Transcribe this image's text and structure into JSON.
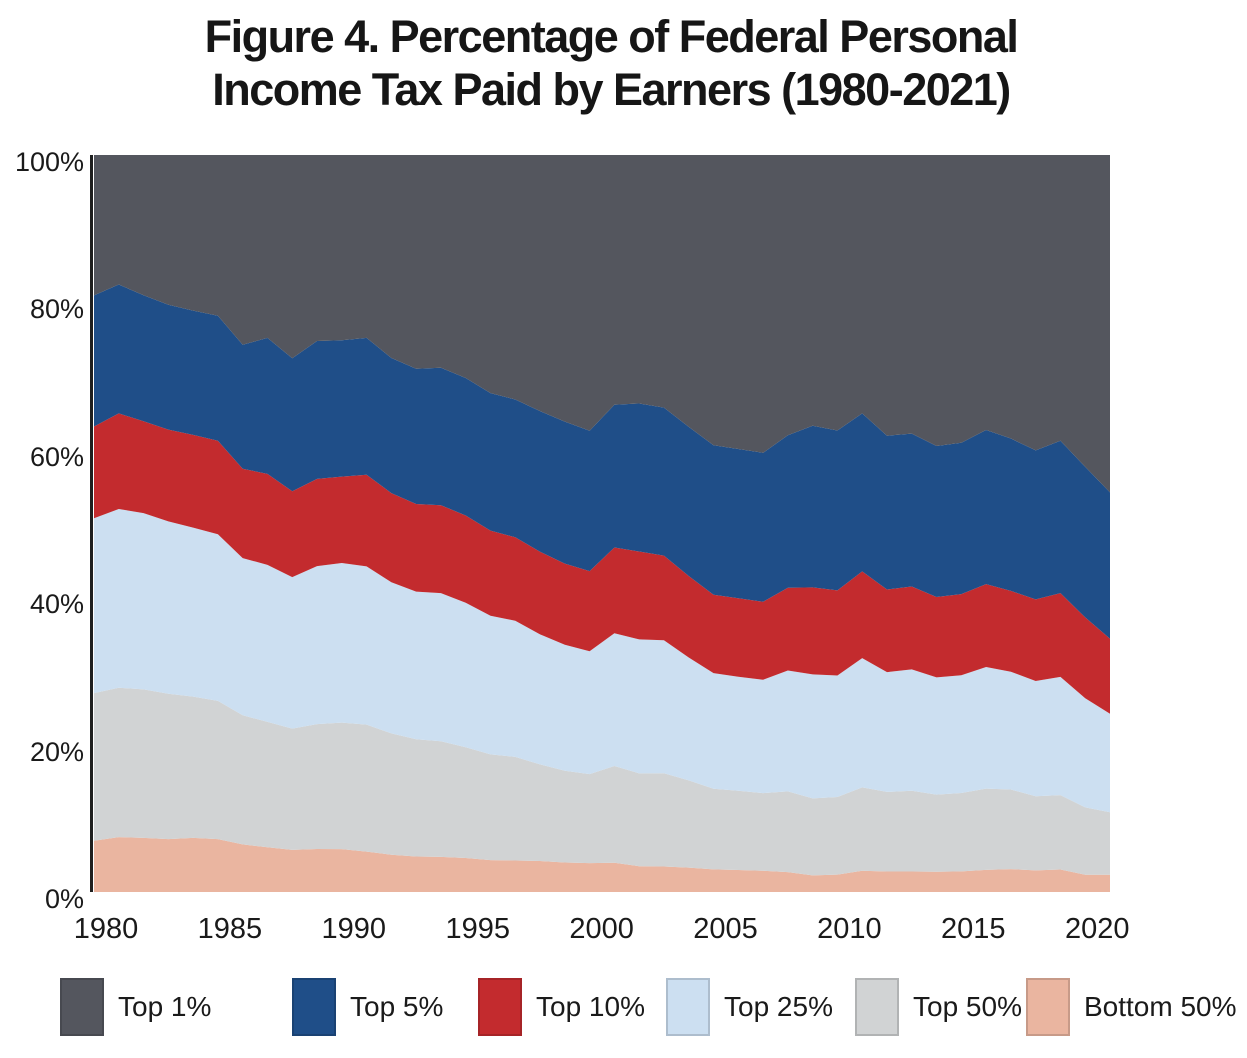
{
  "figure": {
    "title_line1": "Figure 4. Percentage of Federal Personal",
    "title_line2": "Income Tax Paid by Earners (1980-2021)"
  },
  "colors": {
    "top1": "#54565E",
    "top5": "#1F4E88",
    "top10": "#C32B2E",
    "top25": "#CCDFF1",
    "top50": "#D1D3D4",
    "bottom50": "#EAB5A0",
    "axis_line": "#1F1F1F",
    "text": "#1A1A1A",
    "background": "#FFFFFF"
  },
  "axes": {
    "y_ticks": [
      {
        "label": "100%",
        "value": 100
      },
      {
        "label": "80%",
        "value": 80
      },
      {
        "label": "60%",
        "value": 60
      },
      {
        "label": "40%",
        "value": 40
      },
      {
        "label": "20%",
        "value": 20
      },
      {
        "label": "0%",
        "value": 0
      }
    ],
    "x_ticks": [
      {
        "label": "1980",
        "value": 1980
      },
      {
        "label": "1985",
        "value": 1985
      },
      {
        "label": "1990",
        "value": 1990
      },
      {
        "label": "1995",
        "value": 1995
      },
      {
        "label": "2000",
        "value": 2000
      },
      {
        "label": "2005",
        "value": 2005
      },
      {
        "label": "2010",
        "value": 2010
      },
      {
        "label": "2015",
        "value": 2015
      },
      {
        "label": "2020",
        "value": 2020
      }
    ]
  },
  "legend": [
    {
      "label": "Top 1%",
      "color_key": "top1"
    },
    {
      "label": "Top 5%",
      "color_key": "top5"
    },
    {
      "label": "Top 10%",
      "color_key": "top10"
    },
    {
      "label": "Top 25%",
      "color_key": "top25"
    },
    {
      "label": "Top 50%",
      "color_key": "top50"
    },
    {
      "label": "Bottom 50%",
      "color_key": "bottom50"
    }
  ],
  "chart_data": {
    "type": "area",
    "stacked": true,
    "title": "Figure 4. Percentage of Federal Personal Income Tax Paid by Earners (1980-2021)",
    "xlabel": "",
    "ylabel": "",
    "unit": "percent of federal personal income tax paid",
    "ylim": [
      0,
      100
    ],
    "xlim": [
      1980,
      2021
    ],
    "grid": false,
    "legend_position": "bottom",
    "x": [
      1980,
      1981,
      1982,
      1983,
      1984,
      1985,
      1986,
      1987,
      1988,
      1989,
      1990,
      1991,
      1992,
      1993,
      1994,
      1995,
      1996,
      1997,
      1998,
      1999,
      2000,
      2001,
      2002,
      2003,
      2004,
      2005,
      2006,
      2007,
      2008,
      2009,
      2010,
      2011,
      2012,
      2013,
      2014,
      2015,
      2016,
      2017,
      2018,
      2019,
      2020,
      2021
    ],
    "series": [
      {
        "name": "Top 1%",
        "color_key": "top1",
        "values": [
          19.05,
          17.58,
          19.03,
          20.32,
          21.12,
          21.81,
          25.75,
          24.81,
          27.58,
          25.24,
          25.13,
          24.82,
          27.54,
          29.01,
          28.86,
          30.26,
          32.31,
          33.17,
          34.75,
          36.18,
          37.42,
          33.89,
          33.71,
          34.27,
          36.89,
          39.38,
          39.89,
          40.41,
          38.02,
          36.73,
          37.38,
          35.06,
          38.09,
          37.8,
          39.48,
          39.04,
          37.32,
          38.47,
          40.08,
          38.77,
          42.31,
          45.78
        ]
      },
      {
        "name": "Top 5%",
        "color_key": "top5",
        "values": [
          36.84,
          35.06,
          36.13,
          37.26,
          37.98,
          38.78,
          42.57,
          43.26,
          45.62,
          43.94,
          43.64,
          43.38,
          45.88,
          47.36,
          47.52,
          48.91,
          50.97,
          51.87,
          53.84,
          55.45,
          56.47,
          53.25,
          53.8,
          54.36,
          57.13,
          59.67,
          60.14,
          60.61,
          58.72,
          58.66,
          59.07,
          56.49,
          58.95,
          58.55,
          59.97,
          59.58,
          58.23,
          59.14,
          60.3,
          59.44,
          62.74,
          65.63
        ]
      },
      {
        "name": "Top 10%",
        "color_key": "top10",
        "values": [
          49.28,
          48.03,
          48.59,
          49.71,
          50.56,
          51.46,
          54.69,
          55.61,
          57.28,
          55.78,
          55.36,
          55.82,
          57.97,
          59.24,
          59.45,
          60.75,
          62.51,
          63.2,
          65.04,
          66.45,
          67.33,
          64.89,
          65.73,
          65.84,
          68.19,
          70.3,
          70.79,
          71.2,
          69.94,
          70.47,
          70.62,
          68.26,
          70.17,
          69.8,
          70.88,
          70.59,
          69.47,
          70.11,
          71.37,
          70.81,
          73.71,
          75.81
        ]
      },
      {
        "name": "Top 25%",
        "color_key": "top25",
        "values": [
          73.02,
          72.29,
          72.5,
          73.1,
          73.49,
          74.06,
          76.02,
          76.92,
          77.84,
          77.22,
          77.02,
          77.29,
          78.48,
          79.27,
          79.55,
          80.36,
          81.32,
          81.67,
          82.69,
          83.54,
          84.01,
          82.9,
          83.9,
          83.88,
          84.86,
          85.99,
          86.27,
          86.59,
          86.34,
          87.3,
          87.11,
          85.81,
          86.42,
          86.27,
          86.78,
          86.56,
          85.97,
          86.1,
          87.0,
          86.86,
          88.51,
          89.18
        ]
      },
      {
        "name": "Top 50%",
        "color_key": "top50",
        "values": [
          93.04,
          92.55,
          92.65,
          92.83,
          92.65,
          92.83,
          93.54,
          93.93,
          94.28,
          94.17,
          94.19,
          94.52,
          94.94,
          95.19,
          95.23,
          95.39,
          95.68,
          95.72,
          95.79,
          96.0,
          96.09,
          96.03,
          96.5,
          96.54,
          96.7,
          96.93,
          97.01,
          97.11,
          97.3,
          97.75,
          97.64,
          97.11,
          97.22,
          97.22,
          97.25,
          97.2,
          97.0,
          96.89,
          97.06,
          96.94,
          97.66,
          97.66
        ]
      },
      {
        "name": "Bottom 50%",
        "color_key": "bottom50",
        "values": [
          6.96,
          7.45,
          7.35,
          7.17,
          7.35,
          7.17,
          6.46,
          6.07,
          5.72,
          5.83,
          5.81,
          5.48,
          5.06,
          4.81,
          4.77,
          4.61,
          4.32,
          4.28,
          4.21,
          4.0,
          3.91,
          3.97,
          3.5,
          3.46,
          3.3,
          3.07,
          2.99,
          2.89,
          2.7,
          2.25,
          2.36,
          2.89,
          2.78,
          2.78,
          2.75,
          2.8,
          3.0,
          3.11,
          2.94,
          3.06,
          2.34,
          2.34
        ]
      }
    ]
  }
}
